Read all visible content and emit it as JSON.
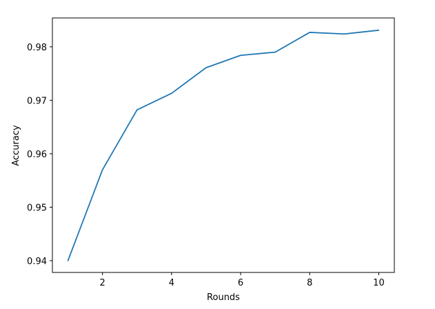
{
  "chart_data": {
    "type": "line",
    "title": "",
    "xlabel": "Rounds",
    "ylabel": "Accuracy",
    "x": [
      1,
      2,
      3,
      4,
      5,
      6,
      7,
      8,
      9,
      10
    ],
    "series": [
      {
        "values": [
          0.94,
          0.957,
          0.9682,
          0.9713,
          0.9761,
          0.9784,
          0.979,
          0.9827,
          0.9824,
          0.9831
        ],
        "color": "#1f77b4"
      }
    ],
    "xlim": [
      0.55,
      10.45
    ],
    "ylim": [
      0.9378,
      0.9854
    ],
    "xticks": [
      2,
      4,
      6,
      8,
      10
    ],
    "yticks": [
      0.94,
      0.95,
      0.96,
      0.97,
      0.98
    ],
    "xtick_labels": [
      "2",
      "4",
      "6",
      "8",
      "10"
    ],
    "ytick_labels": [
      "0.94",
      "0.95",
      "0.96",
      "0.97",
      "0.98"
    ],
    "grid": false,
    "legend": "none"
  }
}
